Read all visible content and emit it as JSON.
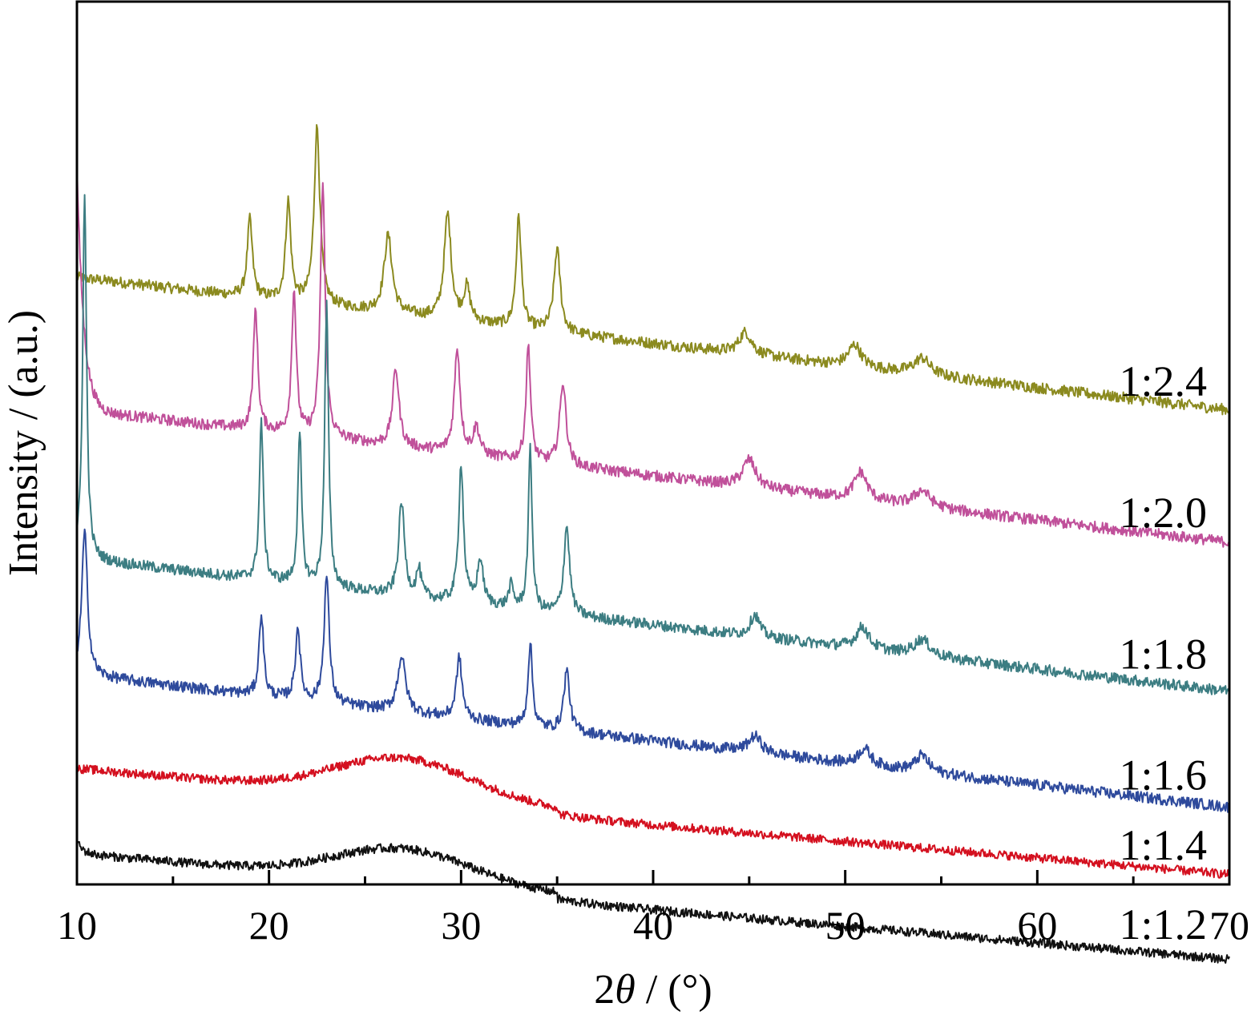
{
  "chart_data": {
    "type": "line",
    "xlabel_prefix": "2",
    "xlabel_symbol": "θ",
    "xlabel_suffix": " / (°)",
    "ylabel": "Intensity / (a.u.)",
    "xlim": [
      10,
      70
    ],
    "x_ticks": [
      "10",
      "20",
      "30",
      "40",
      "50",
      "60",
      "70"
    ],
    "x_minor_ticks": [
      15,
      25,
      35,
      45,
      55,
      65
    ],
    "grid": false,
    "series": [
      {
        "name": "1:2.4",
        "color": "#8b8a1f",
        "baseline": 5.5,
        "slope": 0.02,
        "start_tail": 0,
        "noise": 0.1,
        "amorphous_hump": 0.0,
        "peaks": [
          [
            19.0,
            0.7,
            0.16
          ],
          [
            21.0,
            0.9,
            0.16
          ],
          [
            22.5,
            1.6,
            0.18
          ],
          [
            26.2,
            0.7,
            0.25
          ],
          [
            29.3,
            0.95,
            0.22
          ],
          [
            30.3,
            0.3,
            0.2
          ],
          [
            33.0,
            1.0,
            0.16
          ],
          [
            35.0,
            0.75,
            0.2
          ],
          [
            44.8,
            0.2,
            0.4
          ],
          [
            50.5,
            0.2,
            0.4
          ],
          [
            54.0,
            0.15,
            0.5
          ]
        ]
      },
      {
        "name": "1:2.0",
        "color": "#c0509a",
        "baseline": 4.3,
        "slope": 0.02,
        "start_tail": 2.2,
        "noise": 0.1,
        "amorphous_hump": 0.0,
        "peaks": [
          [
            19.3,
            1.1,
            0.14
          ],
          [
            21.3,
            1.3,
            0.14
          ],
          [
            22.8,
            2.3,
            0.15
          ],
          [
            26.6,
            0.7,
            0.2
          ],
          [
            29.8,
            0.95,
            0.18
          ],
          [
            30.8,
            0.25,
            0.2
          ],
          [
            33.5,
            1.05,
            0.14
          ],
          [
            35.3,
            0.75,
            0.2
          ],
          [
            45.0,
            0.25,
            0.4
          ],
          [
            50.8,
            0.25,
            0.4
          ],
          [
            54.0,
            0.15,
            0.5
          ]
        ]
      },
      {
        "name": "1:1.8",
        "color": "#3c7d82",
        "baseline": 2.95,
        "slope": 0.02,
        "start_tail": 0,
        "noise": 0.1,
        "amorphous_hump": 0.0,
        "peaks": [
          [
            10.4,
            3.3,
            0.12
          ],
          [
            19.6,
            1.45,
            0.12
          ],
          [
            21.6,
            1.35,
            0.12
          ],
          [
            23.0,
            2.55,
            0.12
          ],
          [
            26.9,
            0.85,
            0.18
          ],
          [
            27.8,
            0.25,
            0.15
          ],
          [
            30.0,
            1.25,
            0.15
          ],
          [
            31.0,
            0.4,
            0.18
          ],
          [
            32.6,
            0.2,
            0.15
          ],
          [
            33.6,
            1.45,
            0.12
          ],
          [
            35.5,
            0.8,
            0.18
          ],
          [
            45.3,
            0.2,
            0.3
          ],
          [
            50.9,
            0.2,
            0.4
          ],
          [
            54.0,
            0.15,
            0.5
          ]
        ]
      },
      {
        "name": "1:1.6",
        "color": "#2e4a9c",
        "baseline": 1.9,
        "slope": 0.02,
        "start_tail": 0,
        "noise": 0.1,
        "amorphous_hump": 0.0,
        "peaks": [
          [
            10.4,
            1.3,
            0.18
          ],
          [
            19.6,
            0.75,
            0.14
          ],
          [
            21.5,
            0.65,
            0.15
          ],
          [
            23.0,
            1.15,
            0.16
          ],
          [
            26.9,
            0.5,
            0.25
          ],
          [
            29.9,
            0.55,
            0.18
          ],
          [
            33.6,
            0.75,
            0.14
          ],
          [
            35.5,
            0.55,
            0.18
          ],
          [
            45.3,
            0.15,
            0.4
          ],
          [
            51.0,
            0.15,
            0.4
          ],
          [
            54.0,
            0.15,
            0.4
          ]
        ]
      },
      {
        "name": "1:1.4",
        "color": "#d4101f",
        "baseline": 1.05,
        "slope": 0.015,
        "start_tail": 0,
        "noise": 0.08,
        "amorphous_hump": 0.35,
        "peaks": []
      },
      {
        "name": "1:1.2",
        "color": "#111111",
        "baseline": 0.28,
        "slope": 0.015,
        "start_tail": 0.1,
        "noise": 0.08,
        "amorphous_hump": 0.3,
        "peaks": []
      }
    ]
  }
}
